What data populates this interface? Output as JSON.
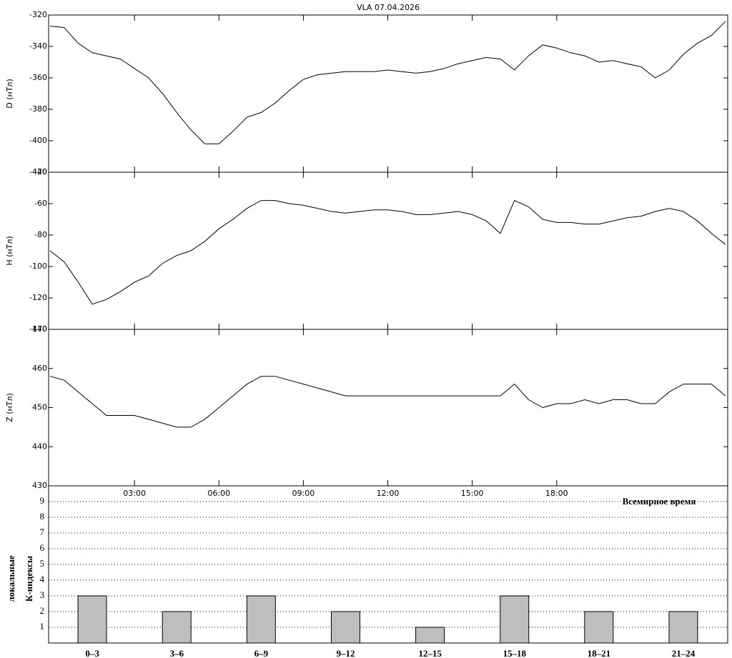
{
  "chart_data": [
    {
      "type": "line",
      "title": "VLA   07.04.2026",
      "ylabel": "D (нТл)",
      "color": "#000000",
      "xlim": [
        0,
        24
      ],
      "ylim": [
        -420,
        -320
      ],
      "yticks": [
        -320,
        -340,
        -360,
        -380,
        -400,
        -420
      ],
      "x": [
        0,
        0.5,
        1,
        1.5,
        2,
        2.5,
        3,
        3.5,
        4,
        4.5,
        5,
        5.5,
        6,
        6.5,
        7,
        7.5,
        8,
        8.5,
        9,
        9.5,
        10,
        10.5,
        11,
        11.5,
        12,
        12.5,
        13,
        13.5,
        14,
        14.5,
        15,
        15.5,
        16,
        16.5,
        17,
        17.5,
        18,
        18.5,
        19,
        19.5,
        20,
        20.5,
        21,
        21.5,
        22,
        22.5,
        23,
        23.5,
        24
      ],
      "values": [
        -327,
        -328,
        -338,
        -344,
        -346,
        -348,
        -354,
        -360,
        -370,
        -382,
        -393,
        -402,
        -402,
        -394,
        -385,
        -382,
        -376,
        -368,
        -361,
        -358,
        -357,
        -356,
        -356,
        -356,
        -355,
        -356,
        -357,
        -356,
        -354,
        -351,
        -349,
        -347,
        -348,
        -355,
        -346,
        -339,
        -341,
        -344,
        -346,
        -350,
        -349,
        -351,
        -353,
        -360,
        -355,
        -345,
        -338,
        -333,
        -324
      ]
    },
    {
      "type": "line",
      "ylabel": "H (нТл)",
      "color": "#000000",
      "xlim": [
        0,
        24
      ],
      "ylim": [
        -140,
        -40
      ],
      "yticks": [
        -40,
        -60,
        -80,
        -100,
        -120,
        -140
      ],
      "x": [
        0,
        0.5,
        1,
        1.5,
        2,
        2.5,
        3,
        3.5,
        4,
        4.5,
        5,
        5.5,
        6,
        6.5,
        7,
        7.5,
        8,
        8.5,
        9,
        9.5,
        10,
        10.5,
        11,
        11.5,
        12,
        12.5,
        13,
        13.5,
        14,
        14.5,
        15,
        15.5,
        16,
        16.5,
        17,
        17.5,
        18,
        18.5,
        19,
        19.5,
        20,
        20.5,
        21,
        21.5,
        22,
        22.5,
        23,
        23.5,
        24
      ],
      "values": [
        -90,
        -97,
        -110,
        -124,
        -121,
        -116,
        -110,
        -106,
        -98,
        -93,
        -90,
        -84,
        -76,
        -70,
        -63,
        -58,
        -58,
        -60,
        -61,
        -63,
        -65,
        -66,
        -65,
        -64,
        -64,
        -65,
        -67,
        -67,
        -66,
        -65,
        -67,
        -71,
        -79,
        -58,
        -62,
        -70,
        -72,
        -72,
        -73,
        -73,
        -71,
        -69,
        -68,
        -65,
        -63,
        -65,
        -71,
        -79,
        -86
      ]
    },
    {
      "type": "line",
      "ylabel": "Z (нТл)",
      "color": "#000000",
      "xlabel": "Всемирное время",
      "xlim": [
        0,
        24
      ],
      "ylim": [
        430,
        470
      ],
      "yticks": [
        430,
        440,
        450,
        460,
        470
      ],
      "xticks": [
        {
          "value": 3,
          "label": "03:00"
        },
        {
          "value": 6,
          "label": "06:00"
        },
        {
          "value": 9,
          "label": "09:00"
        },
        {
          "value": 12,
          "label": "12:00"
        },
        {
          "value": 15,
          "label": "15:00"
        },
        {
          "value": 18,
          "label": "18:00"
        }
      ],
      "x": [
        0,
        0.5,
        1,
        1.5,
        2,
        2.5,
        3,
        3.5,
        4,
        4.5,
        5,
        5.5,
        6,
        6.5,
        7,
        7.5,
        8,
        8.5,
        9,
        9.5,
        10,
        10.5,
        11,
        11.5,
        12,
        12.5,
        13,
        13.5,
        14,
        14.5,
        15,
        15.5,
        16,
        16.5,
        17,
        17.5,
        18,
        18.5,
        19,
        19.5,
        20,
        20.5,
        21,
        21.5,
        22,
        22.5,
        23,
        23.5,
        24
      ],
      "values": [
        458,
        457,
        454,
        451,
        448,
        448,
        448,
        447,
        446,
        445,
        445,
        447,
        450,
        453,
        456,
        458,
        458,
        457,
        456,
        455,
        454,
        453,
        453,
        453,
        453,
        453,
        453,
        453,
        453,
        453,
        453,
        453,
        453,
        456,
        452,
        450,
        451,
        451,
        452,
        451,
        452,
        452,
        451,
        451,
        454,
        456,
        456,
        456,
        453
      ]
    },
    {
      "type": "bar",
      "ylabel": [
        "локальные",
        "К-индексы"
      ],
      "color": "#bebebe",
      "grid": true,
      "ylim": [
        0,
        10
      ],
      "yticks": [
        1,
        2,
        3,
        4,
        5,
        6,
        7,
        8,
        9
      ],
      "categories": [
        "0–3",
        "3–6",
        "6–9",
        "9–12",
        "12–15",
        "15–18",
        "18–21",
        "21–24"
      ],
      "values": [
        3,
        2,
        3,
        2,
        1,
        3,
        2,
        2
      ]
    }
  ]
}
